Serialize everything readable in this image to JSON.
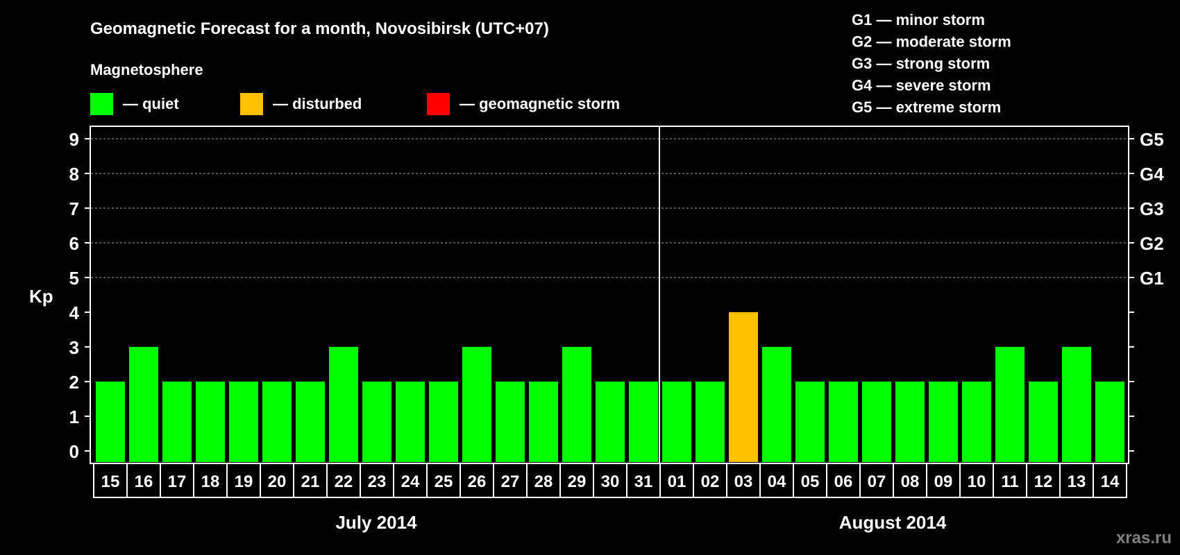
{
  "chart_data": {
    "type": "bar",
    "title": "Geomagnetic Forecast for a month, Novosibirsk (UTC+07)",
    "subtitle": "Magnetosphere",
    "ylabel": "Kp",
    "ylim": [
      0,
      9
    ],
    "yticks": [
      0,
      1,
      2,
      3,
      4,
      5,
      6,
      7,
      8,
      9
    ],
    "grid": "dashed horizontal at 5-9",
    "legend": [
      {
        "label": "— quiet",
        "color": "#00ff00"
      },
      {
        "label": "— disturbed",
        "color": "#ffc000"
      },
      {
        "label": "— geomagnetic storm",
        "color": "#ff0000"
      }
    ],
    "storm_scale": [
      {
        "level": "G1",
        "desc": "G1 — minor storm",
        "kp": 5
      },
      {
        "level": "G2",
        "desc": "G2 — moderate storm",
        "kp": 6
      },
      {
        "level": "G3",
        "desc": "G3 — strong storm",
        "kp": 7
      },
      {
        "level": "G4",
        "desc": "G4 — severe storm",
        "kp": 8
      },
      {
        "level": "G5",
        "desc": "G5 — extreme storm",
        "kp": 9
      }
    ],
    "months": [
      {
        "label": "July 2014",
        "days": 17
      },
      {
        "label": "August 2014",
        "days": 14
      }
    ],
    "categories": [
      "15",
      "16",
      "17",
      "18",
      "19",
      "20",
      "21",
      "22",
      "23",
      "24",
      "25",
      "26",
      "27",
      "28",
      "29",
      "30",
      "31",
      "01",
      "02",
      "03",
      "04",
      "05",
      "06",
      "07",
      "08",
      "09",
      "10",
      "11",
      "12",
      "13",
      "14"
    ],
    "values": [
      2,
      3,
      2,
      2,
      2,
      2,
      2,
      3,
      2,
      2,
      2,
      3,
      2,
      2,
      3,
      2,
      2,
      2,
      2,
      4,
      3,
      2,
      2,
      2,
      2,
      2,
      2,
      3,
      2,
      3,
      2
    ],
    "status": [
      "quiet",
      "quiet",
      "quiet",
      "quiet",
      "quiet",
      "quiet",
      "quiet",
      "quiet",
      "quiet",
      "quiet",
      "quiet",
      "quiet",
      "quiet",
      "quiet",
      "quiet",
      "quiet",
      "quiet",
      "quiet",
      "quiet",
      "disturbed",
      "quiet",
      "quiet",
      "quiet",
      "quiet",
      "quiet",
      "quiet",
      "quiet",
      "quiet",
      "quiet",
      "quiet",
      "quiet"
    ]
  },
  "colors": {
    "quiet": "#00ff00",
    "disturbed": "#ffc000",
    "storm": "#ff0000"
  },
  "watermark": "xras.ru"
}
